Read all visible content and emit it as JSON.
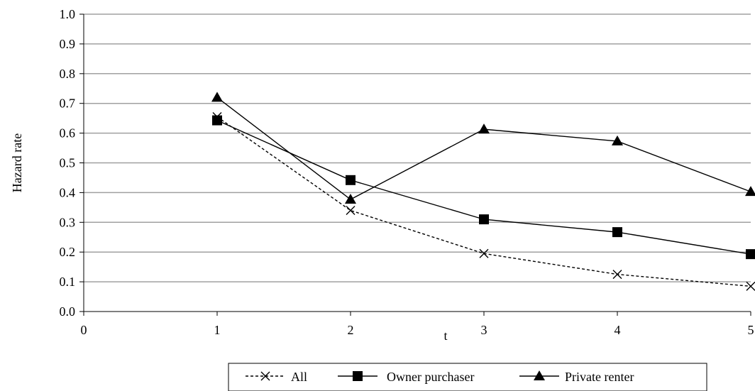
{
  "chart_data": {
    "type": "line",
    "xlabel": "t",
    "ylabel": "Hazard rate",
    "xlim": [
      0,
      5
    ],
    "ylim": [
      0,
      1.0
    ],
    "x_ticks": [
      "0",
      "1",
      "2",
      "3",
      "4",
      "5"
    ],
    "y_ticks": [
      "0.0",
      "0.1",
      "0.2",
      "0.3",
      "0.4",
      "0.5",
      "0.6",
      "0.7",
      "0.8",
      "0.9",
      "1.0"
    ],
    "grid": "horizontal",
    "legend_position": "bottom",
    "x": [
      1,
      2,
      3,
      4,
      5
    ],
    "series": [
      {
        "name": "All",
        "marker": "x",
        "line": "dashed",
        "values": [
          0.655,
          0.34,
          0.195,
          0.125,
          0.085
        ]
      },
      {
        "name": "Owner purchaser",
        "marker": "square",
        "line": "solid",
        "values": [
          0.643,
          0.442,
          0.31,
          0.267,
          0.193
        ]
      },
      {
        "name": "Private renter",
        "marker": "triangle",
        "line": "solid",
        "values": [
          0.72,
          0.377,
          0.613,
          0.573,
          0.403
        ]
      }
    ],
    "colors": {
      "line": "#000000",
      "grid": "#a0a0a0",
      "background": "#ffffff"
    }
  }
}
